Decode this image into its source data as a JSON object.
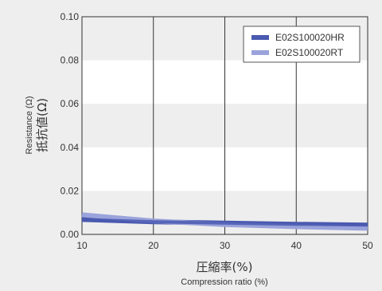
{
  "chart_data": {
    "type": "line",
    "x": [
      10,
      20,
      30,
      40,
      50
    ],
    "series": [
      {
        "name": "E02S100020HR",
        "values": [
          0.0068,
          0.0058,
          0.0052,
          0.0047,
          0.0043
        ],
        "color": "#4a5ab0"
      },
      {
        "name": "E02S100020RT",
        "values": [
          0.009,
          0.0062,
          0.0045,
          0.0035,
          0.0028
        ],
        "color": "#9aa3db"
      }
    ],
    "xlabel_main": "圧縮率(%)",
    "xlabel_sub": "Compression ratio (%)",
    "ylabel_small": "Resistance (Ω)",
    "ylabel_big": "抵抗値(Ω)",
    "xlim": [
      10,
      50
    ],
    "ylim": [
      0,
      0.1
    ],
    "x_ticks": [
      "10",
      "20",
      "30",
      "40",
      "50"
    ],
    "y_ticks": [
      "0.00",
      "0.02",
      "0.04",
      "0.06",
      "0.08",
      "0.10"
    ],
    "legend_position": "top-right",
    "grid": "vertical lines with alternating horizontal bands"
  }
}
